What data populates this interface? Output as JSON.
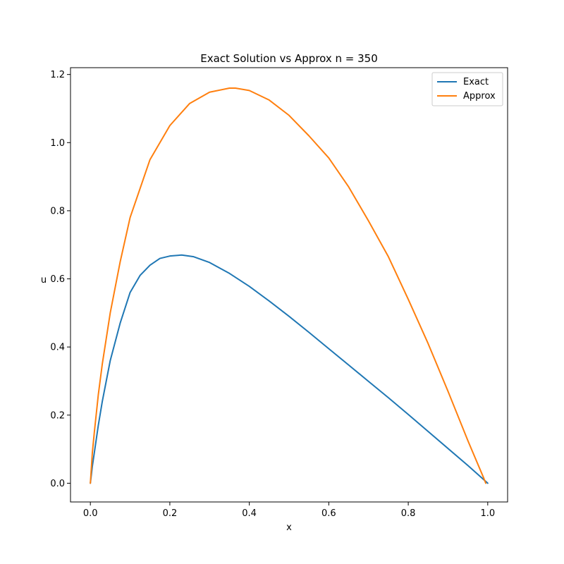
{
  "chart_data": {
    "type": "line",
    "title": "Exact Solution vs Approx n = 350",
    "xlabel": "x",
    "ylabel": "u",
    "xlim": [
      -0.05,
      1.05
    ],
    "ylim": [
      -0.055,
      1.22
    ],
    "xticks": [
      0.0,
      0.2,
      0.4,
      0.6,
      0.8,
      1.0
    ],
    "xtick_labels": [
      "0.0",
      "0.2",
      "0.4",
      "0.6",
      "0.8",
      "1.0"
    ],
    "yticks": [
      0.0,
      0.2,
      0.4,
      0.6,
      0.8,
      1.0,
      1.2
    ],
    "ytick_labels": [
      "0.0",
      "0.2",
      "0.4",
      "0.6",
      "0.8",
      "1.0",
      "1.2"
    ],
    "grid": false,
    "legend_position": "top-right",
    "series": [
      {
        "name": "Exact",
        "color": "#1f77b4",
        "x": [
          0.0,
          0.005,
          0.01,
          0.02,
          0.03,
          0.05,
          0.075,
          0.1,
          0.125,
          0.15,
          0.175,
          0.2,
          0.23,
          0.26,
          0.3,
          0.35,
          0.4,
          0.45,
          0.5,
          0.55,
          0.6,
          0.65,
          0.7,
          0.75,
          0.8,
          0.85,
          0.9,
          0.95,
          1.0
        ],
        "y": [
          0.0,
          0.05,
          0.09,
          0.17,
          0.24,
          0.36,
          0.47,
          0.56,
          0.61,
          0.64,
          0.66,
          0.667,
          0.67,
          0.665,
          0.648,
          0.616,
          0.578,
          0.535,
          0.49,
          0.443,
          0.395,
          0.347,
          0.299,
          0.251,
          0.202,
          0.152,
          0.102,
          0.052,
          0.0
        ]
      },
      {
        "name": "Approx",
        "color": "#ff7f0e",
        "x": [
          0.0,
          0.005,
          0.01,
          0.02,
          0.03,
          0.05,
          0.075,
          0.1,
          0.15,
          0.2,
          0.25,
          0.3,
          0.35,
          0.365,
          0.4,
          0.45,
          0.5,
          0.55,
          0.6,
          0.65,
          0.7,
          0.75,
          0.8,
          0.85,
          0.9,
          0.95,
          0.99,
          0.995
        ],
        "y": [
          0.0,
          0.09,
          0.15,
          0.26,
          0.35,
          0.5,
          0.65,
          0.78,
          0.95,
          1.05,
          1.115,
          1.148,
          1.16,
          1.16,
          1.153,
          1.125,
          1.08,
          1.02,
          0.955,
          0.87,
          0.77,
          0.665,
          0.54,
          0.41,
          0.27,
          0.125,
          0.015,
          0.0
        ]
      }
    ]
  }
}
